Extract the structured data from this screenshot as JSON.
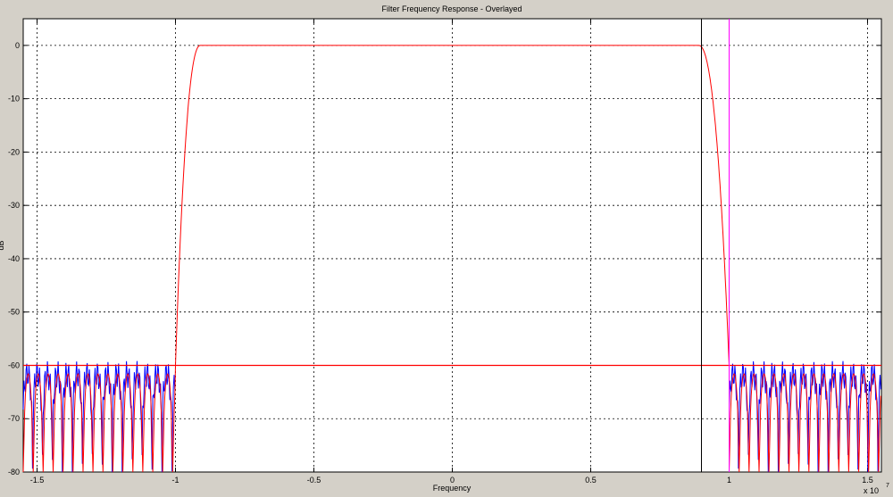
{
  "chart_data": {
    "type": "line",
    "title": "Filter Frequency Response - Overlayed",
    "xlabel": "Frequency",
    "ylabel": "dB",
    "x_exponent": "x 10",
    "x_exponent_power": "7",
    "xlim": [
      -15500000.0,
      15500000.0
    ],
    "ylim": [
      -80,
      5
    ],
    "xticks": [
      -15000000.0,
      -10000000.0,
      -5000000.0,
      0,
      5000000.0,
      10000000.0,
      15000000.0
    ],
    "xtick_labels": [
      "-1.5",
      "-1",
      "-0.5",
      "0",
      "0.5",
      "1",
      "1.5"
    ],
    "yticks": [
      0,
      -10,
      -20,
      -30,
      -40,
      -50,
      -60,
      -70,
      -80
    ],
    "ytick_labels": [
      "0",
      "-10",
      "-20",
      "-30",
      "-40",
      "-50",
      "-60",
      "-70",
      "-80"
    ],
    "grid": true,
    "series": [
      {
        "color": "#ff0000",
        "passband_x": [
          -9100000.0,
          8900000.0
        ],
        "passband_y": 0,
        "transition_edges": [
          -10000000.0,
          10000000.0
        ],
        "stopband_ripple_peak": -61,
        "stopband_floor": -80
      },
      {
        "color": "#0000ff",
        "stopband_ripple_peak": -61
      }
    ],
    "reference_lines": [
      {
        "orientation": "horizontal",
        "y": -60,
        "color": "#ff0000"
      },
      {
        "orientation": "vertical",
        "x": 9000000.0,
        "color": "#000000"
      },
      {
        "orientation": "vertical",
        "x": 10000000.0,
        "color": "#ff00ff"
      }
    ]
  }
}
